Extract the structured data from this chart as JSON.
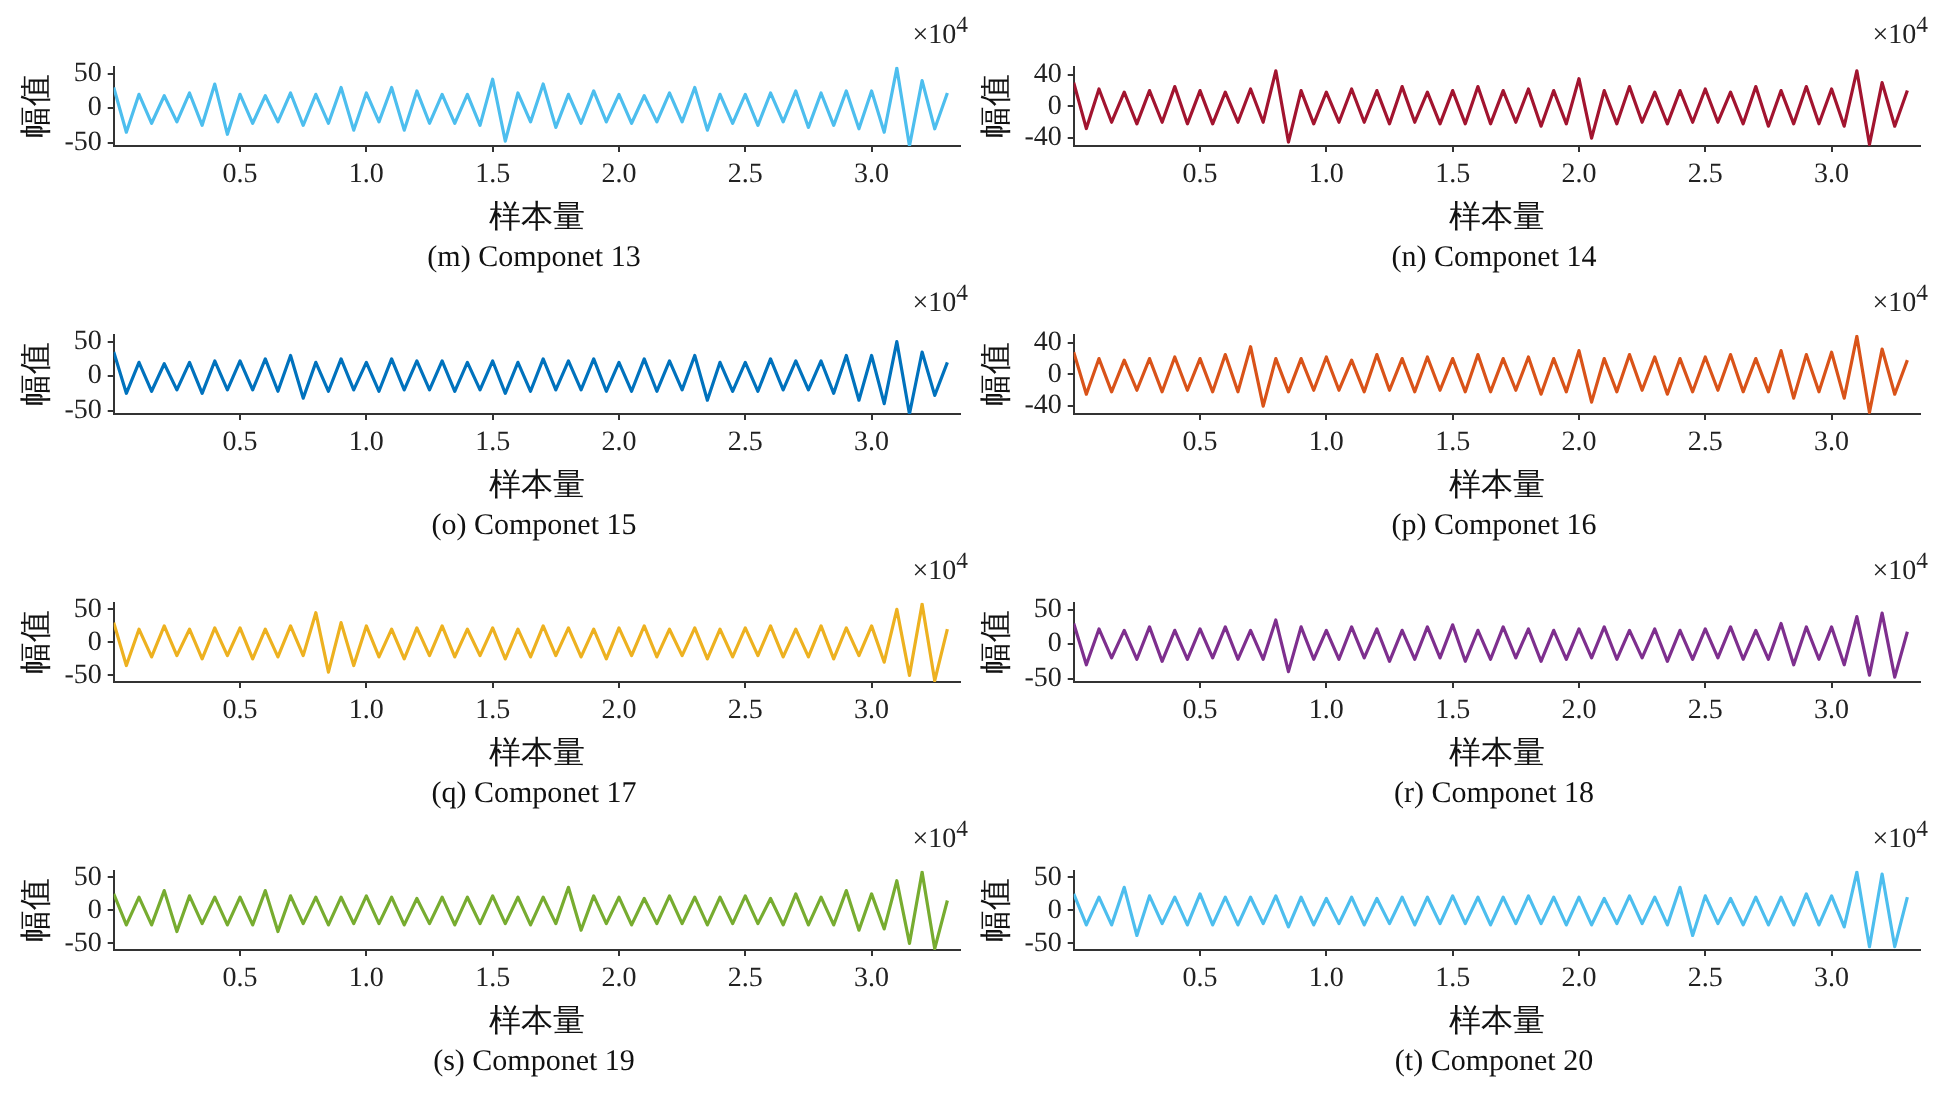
{
  "chart_data": [
    {
      "type": "line",
      "title": "(m) Componet 13",
      "xlabel": "样本量",
      "ylabel": "幅值",
      "annotations": [
        "×10$^{4}$"
      ],
      "x": [
        0,
        0.05,
        0.1,
        0.15,
        0.2,
        0.25,
        0.3,
        0.35,
        0.4,
        0.45,
        0.5,
        0.55,
        0.6,
        0.65,
        0.7,
        0.75,
        0.8,
        0.85,
        0.9,
        0.95,
        1,
        1.05,
        1.1,
        1.15,
        1.2,
        1.25,
        1.3,
        1.35,
        1.4,
        1.45,
        1.5,
        1.55,
        1.6,
        1.65,
        1.7,
        1.75,
        1.8,
        1.85,
        1.9,
        1.95,
        2,
        2.05,
        2.1,
        2.15,
        2.2,
        2.25,
        2.3,
        2.35,
        2.4,
        2.45,
        2.5,
        2.55,
        2.6,
        2.65,
        2.7,
        2.75,
        2.8,
        2.85,
        2.9,
        2.95,
        3,
        3.05,
        3.1,
        3.15,
        3.2,
        3.25,
        3.3
      ],
      "xlim": [
        0,
        3.35
      ],
      "xticks": [
        0.5,
        {
          "value": 1,
          "label": "1.0"
        },
        1.5,
        {
          "value": 2,
          "label": "2.0"
        },
        2.5,
        {
          "value": 3,
          "label": "3.0"
        }
      ],
      "ylim": [
        -55,
        60
      ],
      "yticks": [
        -50,
        0,
        50
      ],
      "series": [
        {
          "color": "#4dbeee",
          "values": [
            30,
            -35,
            20,
            -22,
            18,
            -20,
            22,
            -25,
            35,
            -38,
            20,
            -22,
            18,
            -20,
            22,
            -25,
            20,
            -22,
            30,
            -32,
            22,
            -20,
            30,
            -32,
            25,
            -22,
            20,
            -22,
            20,
            -25,
            42,
            -48,
            22,
            -20,
            35,
            -28,
            20,
            -22,
            25,
            -20,
            20,
            -22,
            18,
            -20,
            22,
            -20,
            30,
            -32,
            20,
            -22,
            20,
            -25,
            22,
            -20,
            25,
            -28,
            22,
            -25,
            25,
            -30,
            25,
            -35,
            58,
            -55,
            40,
            -30,
            22
          ]
        }
      ]
    },
    {
      "type": "line",
      "title": "(n) Componet 14",
      "xlabel": "样本量",
      "ylabel": "幅值",
      "annotations": [
        "×10$^{4}$"
      ],
      "x": [
        0,
        0.05,
        0.1,
        0.15,
        0.2,
        0.25,
        0.3,
        0.35,
        0.4,
        0.45,
        0.5,
        0.55,
        0.6,
        0.65,
        0.7,
        0.75,
        0.8,
        0.85,
        0.9,
        0.95,
        1,
        1.05,
        1.1,
        1.15,
        1.2,
        1.25,
        1.3,
        1.35,
        1.4,
        1.45,
        1.5,
        1.55,
        1.6,
        1.65,
        1.7,
        1.75,
        1.8,
        1.85,
        1.9,
        1.95,
        2,
        2.05,
        2.1,
        2.15,
        2.2,
        2.25,
        2.3,
        2.35,
        2.4,
        2.45,
        2.5,
        2.55,
        2.6,
        2.65,
        2.7,
        2.75,
        2.8,
        2.85,
        2.9,
        2.95,
        3,
        3.05,
        3.1,
        3.15,
        3.2,
        3.25,
        3.3
      ],
      "xlim": [
        0,
        3.35
      ],
      "xticks": [
        0.5,
        {
          "value": 1,
          "label": "1.0"
        },
        1.5,
        {
          "value": 2,
          "label": "2.0"
        },
        2.5,
        {
          "value": 3,
          "label": "3.0"
        }
      ],
      "ylim": [
        -50,
        50
      ],
      "yticks": [
        -40,
        0,
        40
      ],
      "series": [
        {
          "color": "#a2142f",
          "values": [
            30,
            -28,
            22,
            -20,
            18,
            -22,
            20,
            -20,
            25,
            -22,
            20,
            -22,
            18,
            -20,
            22,
            -20,
            45,
            -45,
            20,
            -22,
            18,
            -20,
            22,
            -20,
            20,
            -22,
            25,
            -20,
            18,
            -22,
            20,
            -22,
            25,
            -22,
            20,
            -20,
            22,
            -25,
            20,
            -22,
            35,
            -40,
            20,
            -22,
            25,
            -20,
            18,
            -22,
            20,
            -20,
            22,
            -20,
            18,
            -22,
            25,
            -25,
            20,
            -22,
            25,
            -22,
            22,
            -25,
            45,
            -48,
            30,
            -25,
            20
          ]
        }
      ]
    },
    {
      "type": "line",
      "title": "(o) Componet 15",
      "xlabel": "样本量",
      "ylabel": "幅值",
      "annotations": [
        "×10$^{4}$"
      ],
      "x": [
        0,
        0.05,
        0.1,
        0.15,
        0.2,
        0.25,
        0.3,
        0.35,
        0.4,
        0.45,
        0.5,
        0.55,
        0.6,
        0.65,
        0.7,
        0.75,
        0.8,
        0.85,
        0.9,
        0.95,
        1,
        1.05,
        1.1,
        1.15,
        1.2,
        1.25,
        1.3,
        1.35,
        1.4,
        1.45,
        1.5,
        1.55,
        1.6,
        1.65,
        1.7,
        1.75,
        1.8,
        1.85,
        1.9,
        1.95,
        2,
        2.05,
        2.1,
        2.15,
        2.2,
        2.25,
        2.3,
        2.35,
        2.4,
        2.45,
        2.5,
        2.55,
        2.6,
        2.65,
        2.7,
        2.75,
        2.8,
        2.85,
        2.9,
        2.95,
        3,
        3.05,
        3.1,
        3.15,
        3.2,
        3.25,
        3.3
      ],
      "xlim": [
        0,
        3.35
      ],
      "xticks": [
        0.5,
        {
          "value": 1,
          "label": "1.0"
        },
        1.5,
        {
          "value": 2,
          "label": "2.0"
        },
        2.5,
        {
          "value": 3,
          "label": "3.0"
        }
      ],
      "ylim": [
        -55,
        60
      ],
      "yticks": [
        -50,
        0,
        50
      ],
      "series": [
        {
          "color": "#0072bd",
          "values": [
            35,
            -25,
            20,
            -22,
            18,
            -20,
            20,
            -25,
            22,
            -20,
            22,
            -20,
            25,
            -22,
            30,
            -32,
            20,
            -22,
            25,
            -20,
            20,
            -22,
            25,
            -20,
            22,
            -20,
            22,
            -22,
            20,
            -20,
            22,
            -25,
            20,
            -22,
            25,
            -20,
            22,
            -20,
            25,
            -22,
            20,
            -22,
            25,
            -22,
            22,
            -20,
            30,
            -35,
            20,
            -22,
            20,
            -22,
            25,
            -20,
            22,
            -20,
            22,
            -25,
            30,
            -35,
            30,
            -40,
            50,
            -55,
            35,
            -28,
            20
          ]
        }
      ]
    },
    {
      "type": "line",
      "title": "(p) Componet 16",
      "xlabel": "样本量",
      "ylabel": "幅值",
      "annotations": [
        "×10$^{4}$"
      ],
      "x": [
        0,
        0.05,
        0.1,
        0.15,
        0.2,
        0.25,
        0.3,
        0.35,
        0.4,
        0.45,
        0.5,
        0.55,
        0.6,
        0.65,
        0.7,
        0.75,
        0.8,
        0.85,
        0.9,
        0.95,
        1,
        1.05,
        1.1,
        1.15,
        1.2,
        1.25,
        1.3,
        1.35,
        1.4,
        1.45,
        1.5,
        1.55,
        1.6,
        1.65,
        1.7,
        1.75,
        1.8,
        1.85,
        1.9,
        1.95,
        2,
        2.05,
        2.1,
        2.15,
        2.2,
        2.25,
        2.3,
        2.35,
        2.4,
        2.45,
        2.5,
        2.55,
        2.6,
        2.65,
        2.7,
        2.75,
        2.8,
        2.85,
        2.9,
        2.95,
        3,
        3.05,
        3.1,
        3.15,
        3.2,
        3.25,
        3.3
      ],
      "xlim": [
        0,
        3.35
      ],
      "xticks": [
        0.5,
        {
          "value": 1,
          "label": "1.0"
        },
        1.5,
        {
          "value": 2,
          "label": "2.0"
        },
        2.5,
        {
          "value": 3,
          "label": "3.0"
        }
      ],
      "ylim": [
        -50,
        50
      ],
      "yticks": [
        -40,
        0,
        40
      ],
      "series": [
        {
          "color": "#d95319",
          "values": [
            28,
            -25,
            20,
            -22,
            18,
            -20,
            20,
            -22,
            22,
            -20,
            20,
            -22,
            25,
            -22,
            35,
            -40,
            20,
            -22,
            20,
            -20,
            22,
            -20,
            18,
            -22,
            25,
            -20,
            20,
            -22,
            22,
            -20,
            20,
            -22,
            25,
            -22,
            20,
            -20,
            22,
            -25,
            20,
            -22,
            30,
            -35,
            20,
            -22,
            25,
            -20,
            22,
            -25,
            20,
            -22,
            22,
            -20,
            25,
            -22,
            20,
            -22,
            30,
            -30,
            25,
            -22,
            28,
            -30,
            48,
            -48,
            32,
            -25,
            18
          ]
        }
      ]
    },
    {
      "type": "line",
      "title": "(q) Componet 17",
      "xlabel": "样本量",
      "ylabel": "幅值",
      "annotations": [
        "×10$^{4}$"
      ],
      "x": [
        0,
        0.05,
        0.1,
        0.15,
        0.2,
        0.25,
        0.3,
        0.35,
        0.4,
        0.45,
        0.5,
        0.55,
        0.6,
        0.65,
        0.7,
        0.75,
        0.8,
        0.85,
        0.9,
        0.95,
        1,
        1.05,
        1.1,
        1.15,
        1.2,
        1.25,
        1.3,
        1.35,
        1.4,
        1.45,
        1.5,
        1.55,
        1.6,
        1.65,
        1.7,
        1.75,
        1.8,
        1.85,
        1.9,
        1.95,
        2,
        2.05,
        2.1,
        2.15,
        2.2,
        2.25,
        2.3,
        2.35,
        2.4,
        2.45,
        2.5,
        2.55,
        2.6,
        2.65,
        2.7,
        2.75,
        2.8,
        2.85,
        2.9,
        2.95,
        3,
        3.05,
        3.1,
        3.15,
        3.2,
        3.25,
        3.3
      ],
      "xlim": [
        0,
        3.35
      ],
      "xticks": [
        0.5,
        {
          "value": 1,
          "label": "1.0"
        },
        1.5,
        {
          "value": 2,
          "label": "2.0"
        },
        2.5,
        {
          "value": 3,
          "label": "3.0"
        }
      ],
      "ylim": [
        -60,
        60
      ],
      "yticks": [
        -50,
        0,
        50
      ],
      "series": [
        {
          "color": "#edb120",
          "values": [
            30,
            -35,
            20,
            -22,
            25,
            -20,
            20,
            -25,
            22,
            -20,
            22,
            -25,
            20,
            -22,
            25,
            -20,
            45,
            -45,
            30,
            -35,
            25,
            -22,
            20,
            -25,
            22,
            -20,
            25,
            -22,
            20,
            -20,
            22,
            -25,
            20,
            -22,
            25,
            -20,
            22,
            -22,
            20,
            -25,
            22,
            -20,
            25,
            -22,
            20,
            -20,
            22,
            -25,
            20,
            -22,
            22,
            -20,
            25,
            -22,
            20,
            -22,
            25,
            -25,
            22,
            -20,
            25,
            -30,
            50,
            -50,
            58,
            -58,
            20
          ]
        }
      ]
    },
    {
      "type": "line",
      "title": "(r) Componet 18",
      "xlabel": "样本量",
      "ylabel": "幅值",
      "annotations": [
        "×10$^{4}$"
      ],
      "x": [
        0,
        0.05,
        0.1,
        0.15,
        0.2,
        0.25,
        0.3,
        0.35,
        0.4,
        0.45,
        0.5,
        0.55,
        0.6,
        0.65,
        0.7,
        0.75,
        0.8,
        0.85,
        0.9,
        0.95,
        1,
        1.05,
        1.1,
        1.15,
        1.2,
        1.25,
        1.3,
        1.35,
        1.4,
        1.45,
        1.5,
        1.55,
        1.6,
        1.65,
        1.7,
        1.75,
        1.8,
        1.85,
        1.9,
        1.95,
        2,
        2.05,
        2.1,
        2.15,
        2.2,
        2.25,
        2.3,
        2.35,
        2.4,
        2.45,
        2.5,
        2.55,
        2.6,
        2.65,
        2.7,
        2.75,
        2.8,
        2.85,
        2.9,
        2.95,
        3,
        3.05,
        3.1,
        3.15,
        3.2,
        3.25,
        3.3
      ],
      "xlim": [
        0,
        3.35
      ],
      "xticks": [
        0.5,
        {
          "value": 1,
          "label": "1.0"
        },
        1.5,
        {
          "value": 2,
          "label": "2.0"
        },
        2.5,
        {
          "value": 3,
          "label": "3.0"
        }
      ],
      "ylim": [
        -55,
        60
      ],
      "yticks": [
        -50,
        0,
        50
      ],
      "series": [
        {
          "color": "#7e2f8e",
          "values": [
            30,
            -30,
            22,
            -20,
            20,
            -22,
            25,
            -25,
            20,
            -22,
            22,
            -20,
            25,
            -22,
            20,
            -22,
            35,
            -40,
            25,
            -22,
            20,
            -22,
            25,
            -20,
            22,
            -25,
            20,
            -22,
            25,
            -20,
            28,
            -25,
            20,
            -22,
            25,
            -20,
            22,
            -25,
            20,
            -22,
            22,
            -20,
            25,
            -22,
            20,
            -20,
            22,
            -25,
            20,
            -22,
            22,
            -20,
            25,
            -22,
            20,
            -22,
            30,
            -30,
            25,
            -22,
            25,
            -30,
            40,
            -45,
            45,
            -48,
            18
          ]
        }
      ]
    },
    {
      "type": "line",
      "title": "(s) Componet 19",
      "xlabel": "样本量",
      "ylabel": "幅值",
      "annotations": [
        "×10$^{4}$"
      ],
      "x": [
        0,
        0.05,
        0.1,
        0.15,
        0.2,
        0.25,
        0.3,
        0.35,
        0.4,
        0.45,
        0.5,
        0.55,
        0.6,
        0.65,
        0.7,
        0.75,
        0.8,
        0.85,
        0.9,
        0.95,
        1,
        1.05,
        1.1,
        1.15,
        1.2,
        1.25,
        1.3,
        1.35,
        1.4,
        1.45,
        1.5,
        1.55,
        1.6,
        1.65,
        1.7,
        1.75,
        1.8,
        1.85,
        1.9,
        1.95,
        2,
        2.05,
        2.1,
        2.15,
        2.2,
        2.25,
        2.3,
        2.35,
        2.4,
        2.45,
        2.5,
        2.55,
        2.6,
        2.65,
        2.7,
        2.75,
        2.8,
        2.85,
        2.9,
        2.95,
        3,
        3.05,
        3.1,
        3.15,
        3.2,
        3.25,
        3.3
      ],
      "xlim": [
        0,
        3.35
      ],
      "xticks": [
        0.5,
        {
          "value": 1,
          "label": "1.0"
        },
        1.5,
        {
          "value": 2,
          "label": "2.0"
        },
        2.5,
        {
          "value": 3,
          "label": "3.0"
        }
      ],
      "ylim": [
        -60,
        60
      ],
      "yticks": [
        -50,
        0,
        50
      ],
      "series": [
        {
          "color": "#77ac30",
          "values": [
            25,
            -22,
            20,
            -22,
            30,
            -32,
            22,
            -20,
            20,
            -22,
            20,
            -22,
            30,
            -32,
            22,
            -20,
            20,
            -22,
            20,
            -20,
            22,
            -20,
            20,
            -22,
            18,
            -20,
            20,
            -22,
            20,
            -20,
            22,
            -20,
            20,
            -22,
            20,
            -20,
            35,
            -30,
            22,
            -20,
            20,
            -22,
            18,
            -20,
            22,
            -20,
            20,
            -22,
            20,
            -20,
            22,
            -20,
            18,
            -22,
            25,
            -22,
            20,
            -22,
            30,
            -30,
            25,
            -28,
            45,
            -50,
            58,
            -58,
            15
          ]
        }
      ]
    },
    {
      "type": "line",
      "title": "(t) Componet 20",
      "xlabel": "样本量",
      "ylabel": "幅值",
      "annotations": [
        "×10$^{4}$"
      ],
      "x": [
        0,
        0.05,
        0.1,
        0.15,
        0.2,
        0.25,
        0.3,
        0.35,
        0.4,
        0.45,
        0.5,
        0.55,
        0.6,
        0.65,
        0.7,
        0.75,
        0.8,
        0.85,
        0.9,
        0.95,
        1,
        1.05,
        1.1,
        1.15,
        1.2,
        1.25,
        1.3,
        1.35,
        1.4,
        1.45,
        1.5,
        1.55,
        1.6,
        1.65,
        1.7,
        1.75,
        1.8,
        1.85,
        1.9,
        1.95,
        2,
        2.05,
        2.1,
        2.15,
        2.2,
        2.25,
        2.3,
        2.35,
        2.4,
        2.45,
        2.5,
        2.55,
        2.6,
        2.65,
        2.7,
        2.75,
        2.8,
        2.85,
        2.9,
        2.95,
        3,
        3.05,
        3.1,
        3.15,
        3.2,
        3.25,
        3.3
      ],
      "xlim": [
        0,
        3.35
      ],
      "xticks": [
        0.5,
        {
          "value": 1,
          "label": "1.0"
        },
        1.5,
        {
          "value": 2,
          "label": "2.0"
        },
        2.5,
        {
          "value": 3,
          "label": "3.0"
        }
      ],
      "ylim": [
        -60,
        60
      ],
      "yticks": [
        -50,
        0,
        50
      ],
      "series": [
        {
          "color": "#4dbeee",
          "values": [
            25,
            -22,
            20,
            -22,
            35,
            -38,
            22,
            -20,
            20,
            -22,
            25,
            -22,
            20,
            -22,
            20,
            -20,
            22,
            -25,
            20,
            -22,
            18,
            -20,
            20,
            -22,
            18,
            -20,
            20,
            -22,
            20,
            -20,
            22,
            -20,
            20,
            -22,
            20,
            -20,
            22,
            -20,
            20,
            -22,
            20,
            -22,
            18,
            -20,
            22,
            -20,
            20,
            -22,
            35,
            -38,
            22,
            -20,
            18,
            -22,
            20,
            -22,
            20,
            -22,
            25,
            -22,
            22,
            -25,
            58,
            -55,
            55,
            -55,
            20
          ]
        }
      ]
    }
  ]
}
